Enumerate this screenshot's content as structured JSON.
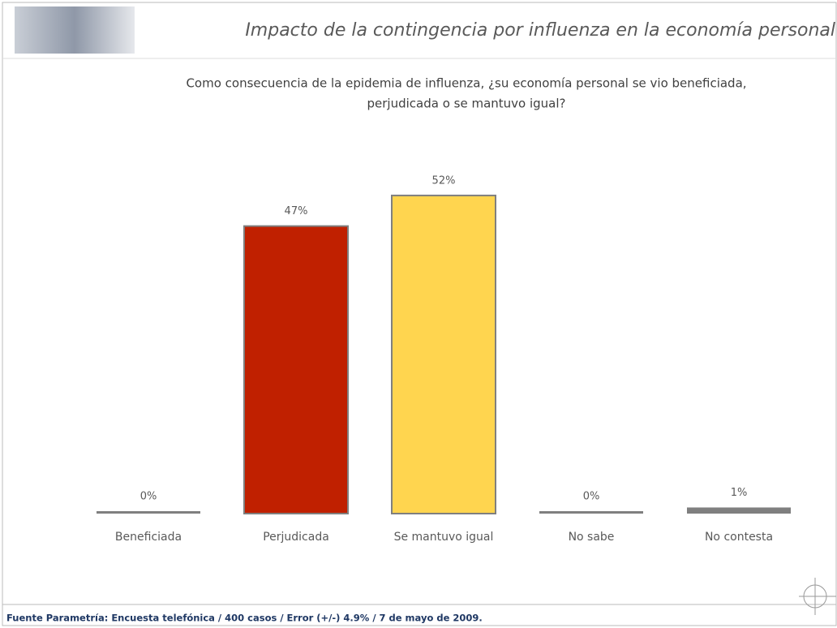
{
  "chart_data": {
    "type": "bar",
    "title": "Impacto de la contingencia por influenza en la economía personal",
    "subtitle": [
      "Como consecuencia de la epidemia de influenza, ¿su economía personal se vio beneficiada,",
      "perjudicada o se mantuvo igual?"
    ],
    "categories": [
      "Beneficiada",
      "Perjudicada",
      "Se mantuvo igual",
      "No sabe",
      "No contesta"
    ],
    "values": [
      0,
      47,
      52,
      0,
      1
    ],
    "value_labels": [
      "0%",
      "47%",
      "52%",
      "0%",
      "1%"
    ],
    "colors": [
      "#7f7f7f",
      "#c02000",
      "#ffd54f",
      "#7f7f7f",
      "#7f7f7f"
    ],
    "source": "Fuente Parametría: Encuesta telefónica / 400 casos / Error (+/-) 4.9% / 7 de mayo de 2009."
  }
}
